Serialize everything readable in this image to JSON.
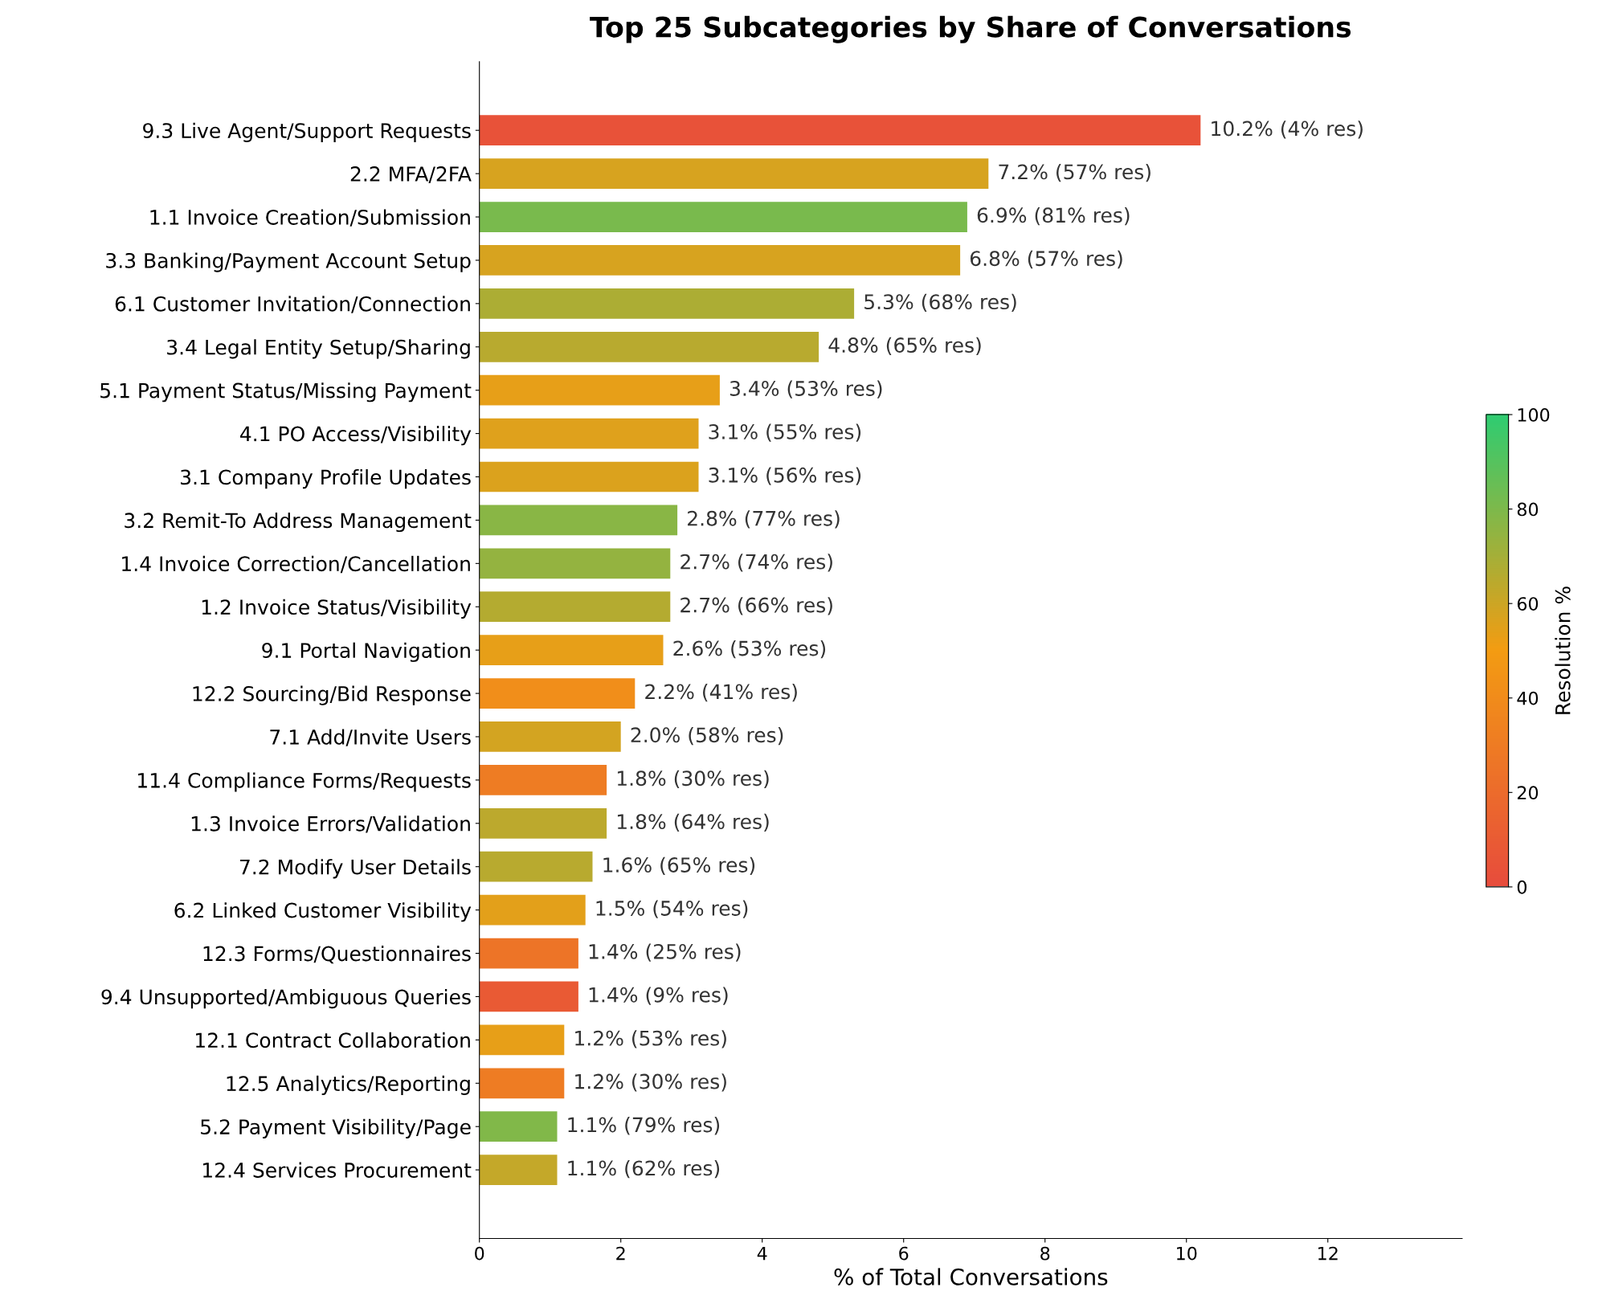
{
  "chart_data": {
    "type": "bar",
    "orientation": "horizontal",
    "title": "Top 25 Subcategories by Share of Conversations",
    "xlabel": "% of Total Conversations",
    "clabel": "Resolution %",
    "categories": [
      "9.3 Live Agent/Support Requests",
      "2.2 MFA/2FA",
      "1.1 Invoice Creation/Submission",
      "3.3 Banking/Payment Account Setup",
      "6.1 Customer Invitation/Connection",
      "3.4 Legal Entity Setup/Sharing",
      "5.1 Payment Status/Missing Payment",
      "4.1 PO Access/Visibility",
      "3.1 Company Profile Updates",
      "3.2 Remit-To Address Management",
      "1.4 Invoice Correction/Cancellation",
      "1.2 Invoice Status/Visibility",
      "9.1 Portal Navigation",
      "12.2 Sourcing/Bid Response",
      "7.1 Add/Invite Users",
      "11.4 Compliance Forms/Requests",
      "1.3 Invoice Errors/Validation",
      "7.2 Modify User Details",
      "6.2 Linked Customer Visibility",
      "12.3 Forms/Questionnaires",
      "9.4 Unsupported/Ambiguous Queries",
      "12.1 Contract Collaboration",
      "12.5 Analytics/Reporting",
      "5.2 Payment Visibility/Page",
      "12.4 Services Procurement"
    ],
    "values": [
      10.2,
      7.2,
      6.9,
      6.8,
      5.3,
      4.8,
      3.4,
      3.1,
      3.1,
      2.8,
      2.7,
      2.7,
      2.6,
      2.2,
      2.0,
      1.8,
      1.8,
      1.6,
      1.5,
      1.4,
      1.4,
      1.2,
      1.2,
      1.1,
      1.1
    ],
    "colors": [
      "#e85239",
      "#d7a31f",
      "#79ba4d",
      "#d7a31f",
      "#acad34",
      "#b8aa2f",
      "#e79f18",
      "#dfa11c",
      "#dba21d",
      "#89b645",
      "#94b340",
      "#b4ab30",
      "#e79f18",
      "#f18e1a",
      "#d3a421",
      "#ee7c23",
      "#bca92d",
      "#b8aa2f",
      "#e3a01a",
      "#ed7427",
      "#e95a34",
      "#e79f18",
      "#ee7c23",
      "#81b849",
      "#c4a829"
    ],
    "value_labels": [
      "10.2% (4% res)",
      "7.2% (57% res)",
      "6.9% (81% res)",
      "6.8% (57% res)",
      "5.3% (68% res)",
      "4.8% (65% res)",
      "3.4% (53% res)",
      "3.1% (55% res)",
      "3.1% (56% res)",
      "2.8% (77% res)",
      "2.7% (74% res)",
      "2.7% (66% res)",
      "2.6% (53% res)",
      "2.2% (41% res)",
      "2.0% (58% res)",
      "1.8% (30% res)",
      "1.8% (64% res)",
      "1.6% (65% res)",
      "1.5% (54% res)",
      "1.4% (25% res)",
      "1.4% (9% res)",
      "1.2% (53% res)",
      "1.2% (30% res)",
      "1.1% (79% res)",
      "1.1% (62% res)"
    ],
    "xlim": [
      0,
      13.9
    ],
    "xticks": [
      0,
      2,
      4,
      6,
      8,
      10,
      12
    ],
    "clim": [
      0,
      100
    ],
    "cticks": [
      0,
      20,
      40,
      60,
      80,
      100
    ],
    "grid": false,
    "legend": false
  }
}
